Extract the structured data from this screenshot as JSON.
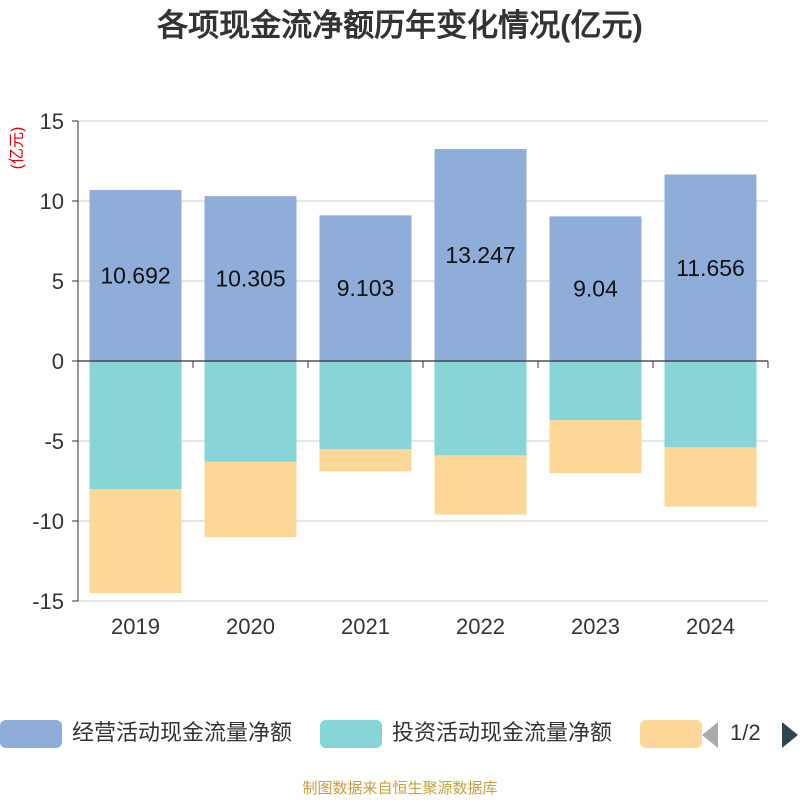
{
  "chart_data": {
    "type": "bar",
    "stacked": true,
    "title": "各项现金流净额历年变化情况(亿元)",
    "ylabel": "(亿元)",
    "xlabel": "",
    "ylim": [
      -15,
      15
    ],
    "yticks": [
      15,
      10,
      5,
      0,
      -5,
      -10,
      -15
    ],
    "grid": true,
    "categories": [
      "2019",
      "2020",
      "2021",
      "2022",
      "2023",
      "2024"
    ],
    "series": [
      {
        "name": "经营活动现金流量净额",
        "color": "#8eadd9",
        "values": [
          10.692,
          10.305,
          9.103,
          13.247,
          9.04,
          11.656
        ],
        "labels": [
          "10.692",
          "10.305",
          "9.103",
          "13.247",
          "9.04",
          "11.656"
        ]
      },
      {
        "name": "投资活动现金流量净额",
        "color": "#87d5d6",
        "values": [
          -8.0,
          -6.3,
          -5.5,
          -5.9,
          -3.7,
          -5.4
        ]
      },
      {
        "name": "",
        "color": "#fed898",
        "values": [
          -6.5,
          -4.7,
          -1.4,
          -3.7,
          -3.3,
          -3.7
        ]
      }
    ],
    "legend_position": "bottom"
  },
  "legend": {
    "items": [
      {
        "label": "经营活动现金流量净额",
        "color": "#8eadd9"
      },
      {
        "label": "投资活动现金流量净额",
        "color": "#87d5d6"
      },
      {
        "label": "",
        "color": "#fed898"
      }
    ],
    "pager": "1/2"
  },
  "source": "制图数据来自恒生聚源数据库"
}
